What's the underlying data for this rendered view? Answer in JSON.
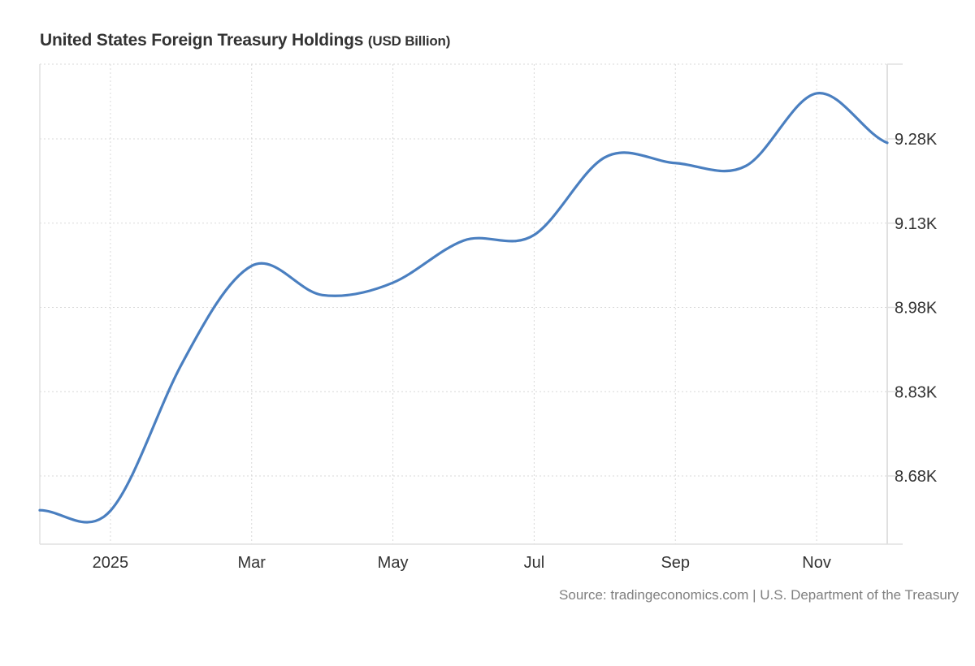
{
  "header": {
    "title": "United States Foreign Treasury Holdings",
    "unit": "(USD Billion)"
  },
  "footer": {
    "source": "Source: tradingeconomics.com | U.S. Department of the Treasury"
  },
  "colors": {
    "line": "#4a7fc0",
    "grid": "#d9d9d9",
    "axis": "#e0e0e0",
    "text": "#333333",
    "source_text": "#808080"
  },
  "chart_data": {
    "type": "line",
    "title": "United States Foreign Treasury Holdings (USD Billion)",
    "xlabel": "",
    "ylabel": "USD Billion",
    "y_axis_position": "right",
    "grid": true,
    "legend": null,
    "ylim": [
      8620,
      9420
    ],
    "yticks": [
      8680,
      8830,
      8980,
      9130,
      9280
    ],
    "ytick_labels": [
      "8.68K",
      "8.83K",
      "8.98K",
      "9.13K",
      "9.28K"
    ],
    "xtick_labels": [
      "2025",
      "Mar",
      "May",
      "Jul",
      "Sep",
      "Nov"
    ],
    "x": [
      "Dec 2024",
      "Jan 2025",
      "Feb 2025",
      "Mar 2025",
      "Apr 2025",
      "May 2025",
      "Jun 2025",
      "Jul 2025",
      "Aug 2025",
      "Sep 2025",
      "Oct 2025",
      "Nov 2025",
      "Dec 2025"
    ],
    "series": [
      {
        "name": "United States Foreign Treasury Holdings",
        "values": [
          8619,
          8618,
          8877,
          9054,
          9002,
          9024,
          9099,
          9109,
          9247,
          9237,
          9232,
          9361,
          9273
        ]
      }
    ],
    "source": "tradingeconomics.com | U.S. Department of the Treasury"
  }
}
